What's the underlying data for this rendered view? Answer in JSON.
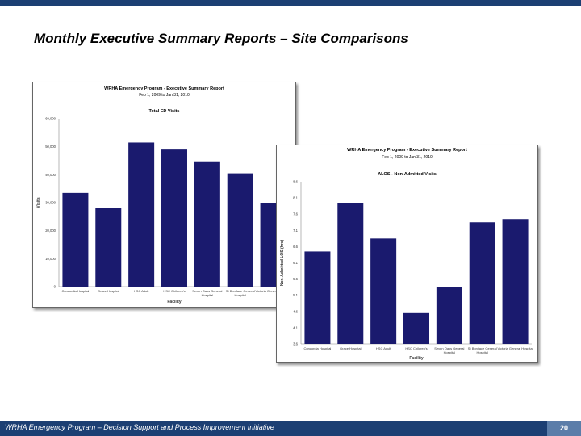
{
  "slide": {
    "title": "Monthly Executive Summary Reports – Site Comparisons",
    "footer": "WRHA Emergency Program – Decision Support and Process Improvement Initiative",
    "page_number": "20"
  },
  "colors": {
    "bar": "#1a1a6e",
    "accent": "#1c3f73",
    "page_badge": "#5b7da9"
  },
  "chart_data": [
    {
      "type": "bar",
      "report_title": "WRHA Emergency Program - Executive Summary Report",
      "date_range": "Feb 1, 2009 to Jan 31, 2010",
      "title": "Total ED Visits",
      "xlabel": "Facility",
      "ylabel": "Visits",
      "ylim": [
        0,
        60000
      ],
      "yticks": [
        0,
        10000,
        20000,
        30000,
        40000,
        50000,
        60000
      ],
      "ytick_labels": [
        "0",
        "10,000",
        "20,000",
        "30,000",
        "40,000",
        "50,000",
        "60,000"
      ],
      "categories": [
        "Concordia Hospital",
        "Grace Hospital",
        "HSC Adult",
        "HSC Children's",
        "Seven Oaks General Hospital",
        "St Boniface General Hospital",
        "Victoria General Hospital"
      ],
      "values": [
        33500,
        28000,
        51500,
        49000,
        44500,
        40500,
        30000
      ]
    },
    {
      "type": "bar",
      "report_title": "WRHA Emergency Program - Executive Summary Report",
      "date_range": "Feb 1, 2009 to Jan 31, 2010",
      "title": "ALOS - Non-Admitted Visits",
      "xlabel": "Facility",
      "ylabel": "Non-Admitted LOS (hrs)",
      "ylim": [
        3.6,
        8.6
      ],
      "yticks": [
        3.6,
        4.1,
        4.6,
        5.1,
        5.6,
        6.1,
        6.6,
        7.1,
        7.6,
        8.1,
        8.6
      ],
      "ytick_labels": [
        "3.6",
        "4.1",
        "4.6",
        "5.1",
        "5.6",
        "6.1",
        "6.6",
        "7.1",
        "7.6",
        "8.1",
        "8.6"
      ],
      "categories": [
        "Concordia Hospital",
        "Grace Hospital",
        "HSC Adult",
        "HSC Children's",
        "Seven Oaks General Hospital",
        "St Boniface General Hospital",
        "Victoria General Hospital"
      ],
      "values": [
        6.45,
        7.95,
        6.85,
        4.55,
        5.35,
        7.35,
        7.45
      ]
    }
  ]
}
